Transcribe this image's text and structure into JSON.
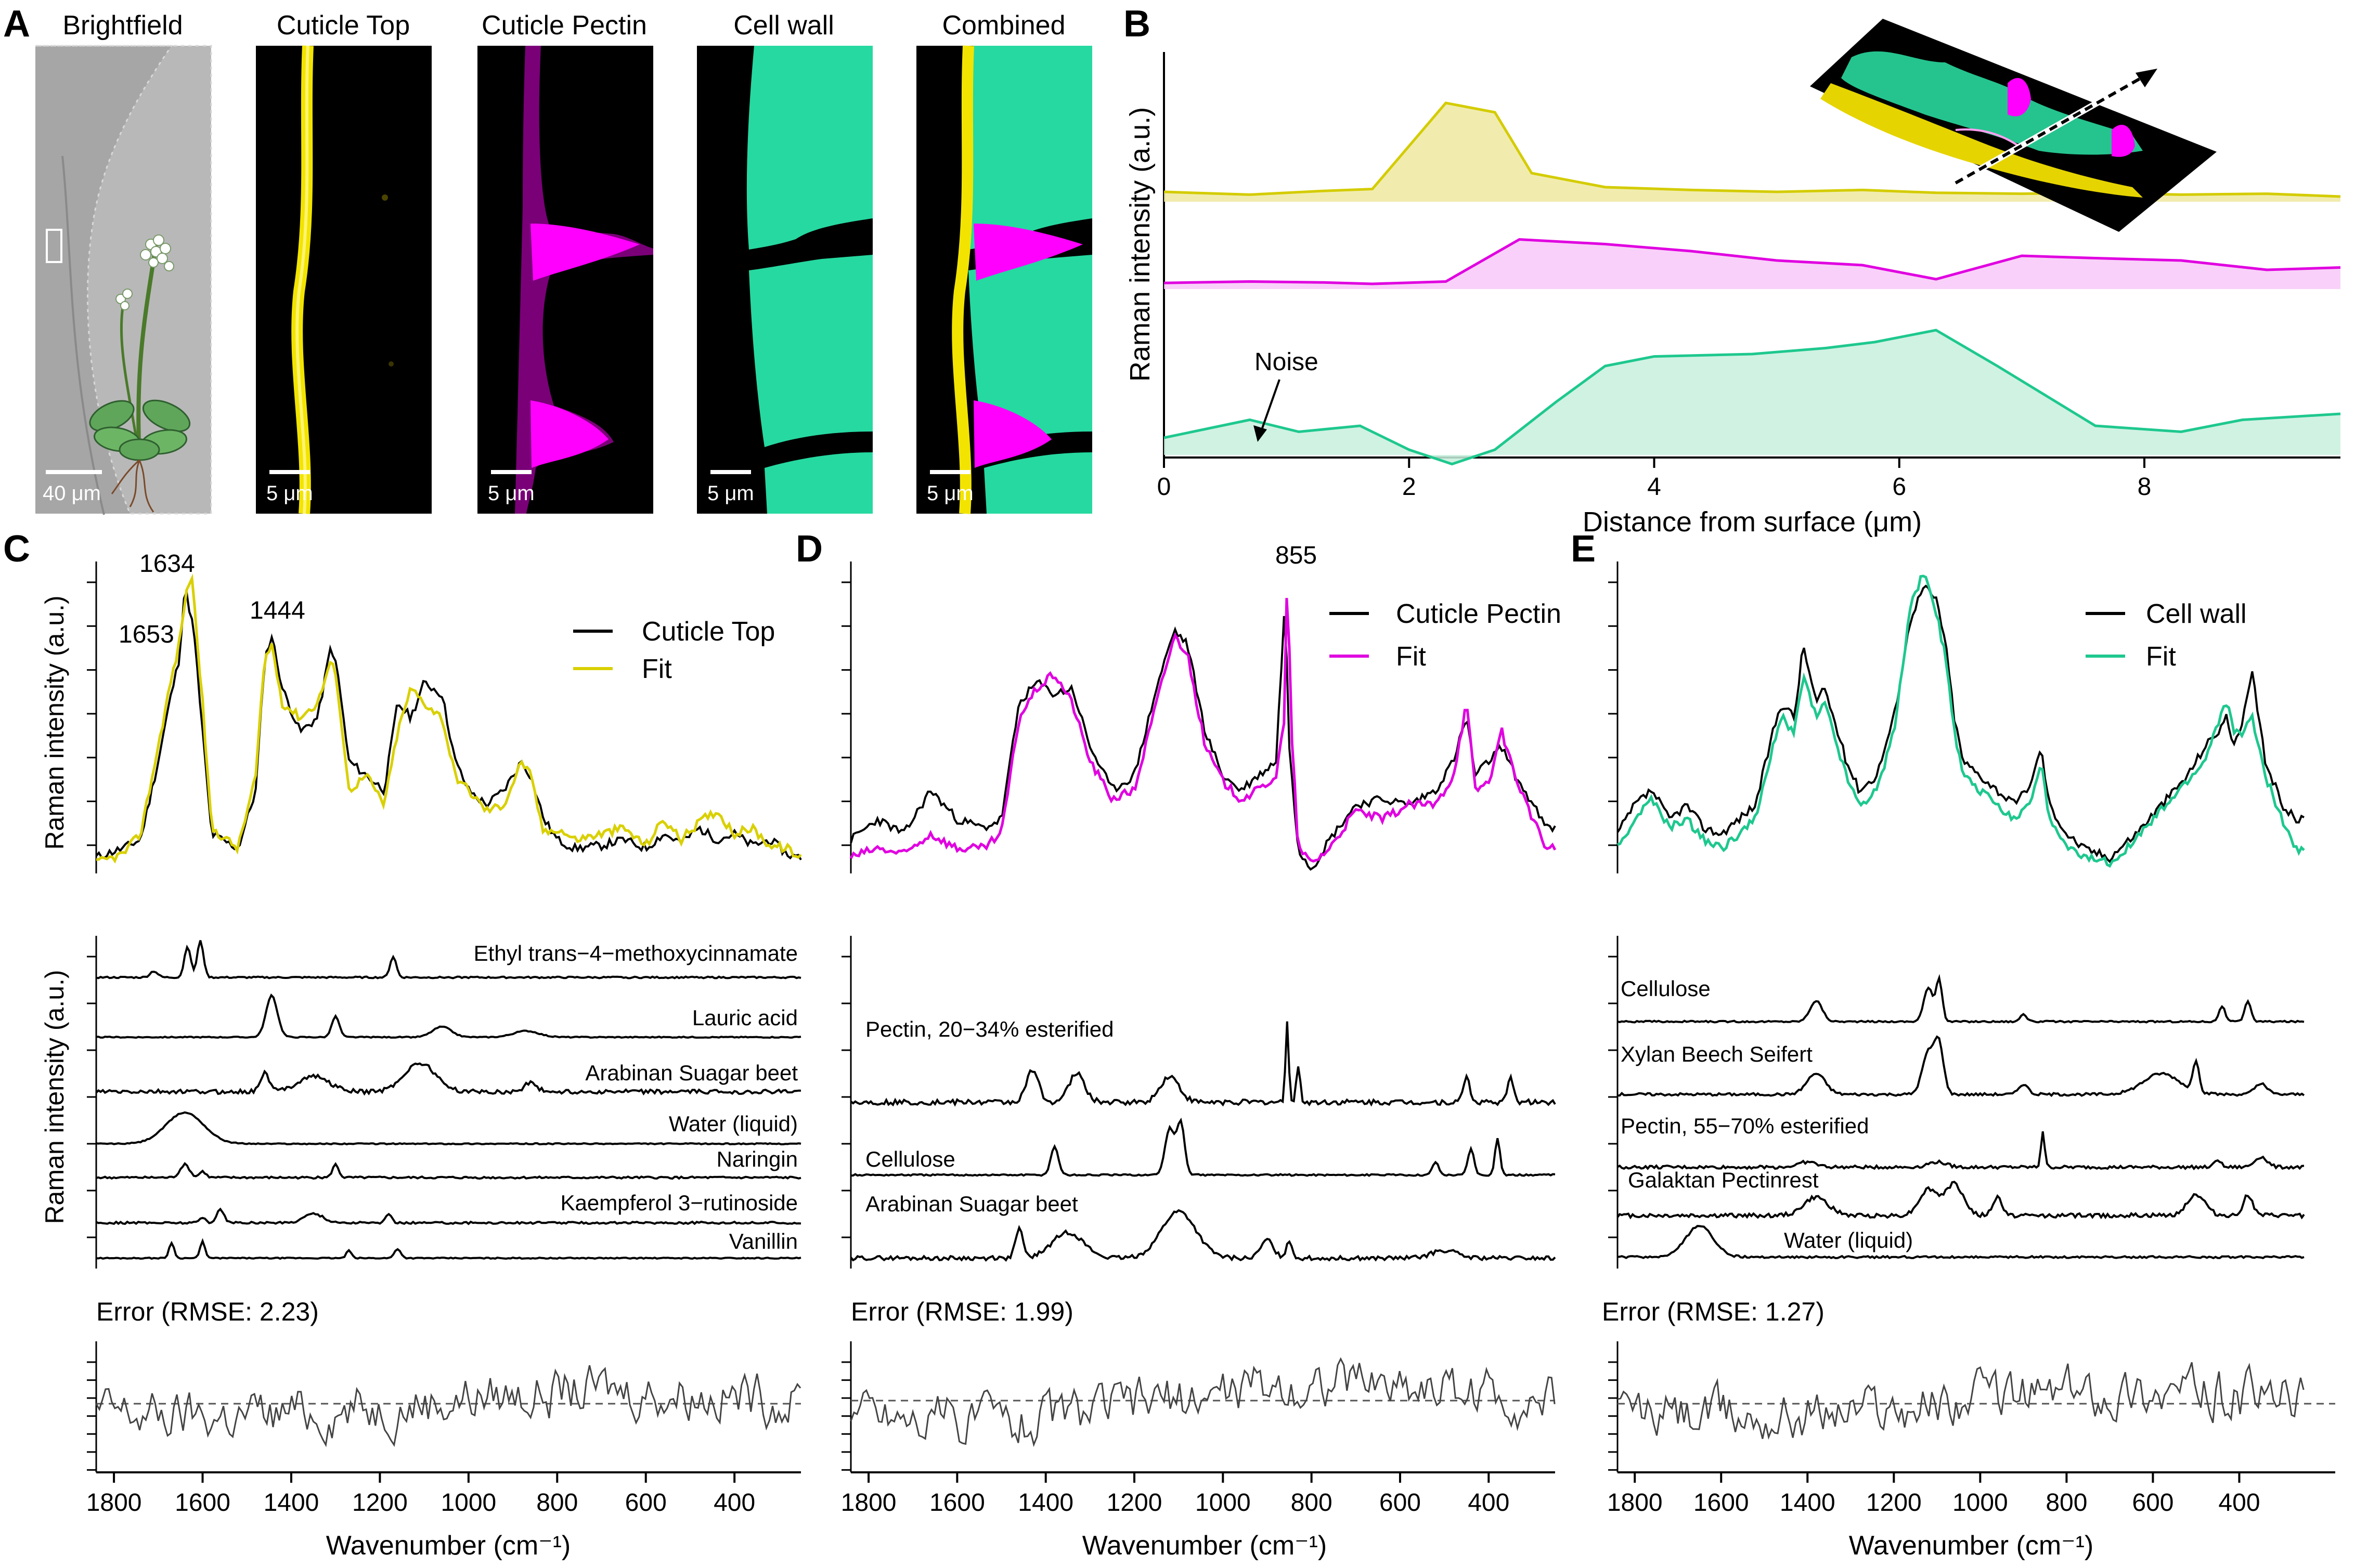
{
  "panel_letters": {
    "A": "A",
    "B": "B",
    "C": "C",
    "D": "D",
    "E": "E"
  },
  "panel_a": {
    "titles": [
      "Brightfield",
      "Cuticle Top",
      "Cuticle Pectin",
      "Cell wall",
      "Combined"
    ],
    "scalebars": [
      "40 μm",
      "5 μm",
      "5 μm",
      "5 μm",
      "5 μm"
    ],
    "colors": {
      "cuticle_top": "#ffee00",
      "cuticle_pectin": "#ff00ff",
      "cell_wall": "#2ee6a8",
      "brightfield": "#9a9a9a"
    }
  },
  "chart_data": [
    {
      "id": "B",
      "type": "area",
      "title": "",
      "xlabel": "Distance from surface (μm)",
      "ylabel": "Raman intensity (a.u.)",
      "xlim": [
        0,
        9.6
      ],
      "xticks": [
        "0",
        "2",
        "4",
        "6",
        "8"
      ],
      "annotation": "Noise",
      "series": [
        {
          "name": "Cuticle Top",
          "color": "#d4cc00",
          "fill": "#efe9a0",
          "x": [
            0,
            0.7,
            1.3,
            1.7,
            2.3,
            2.7,
            3.0,
            3.6,
            4.3,
            5.0,
            5.7,
            6.3,
            7.0,
            7.6,
            8.3,
            9.0,
            9.6
          ],
          "y": [
            0.05,
            0.02,
            0.06,
            0.08,
            1.0,
            0.9,
            0.25,
            0.1,
            0.07,
            0.05,
            0.07,
            0.04,
            0.03,
            0.04,
            0.02,
            0.03,
            0.0
          ]
        },
        {
          "name": "Cuticle Pectin",
          "color": "#e000e0",
          "fill": "#f8c8f8",
          "x": [
            0,
            0.7,
            1.3,
            1.7,
            2.3,
            2.9,
            3.6,
            4.3,
            5.0,
            5.7,
            6.3,
            7.0,
            7.6,
            8.3,
            9.0,
            9.6
          ],
          "y": [
            0.02,
            0.05,
            0.03,
            0.0,
            0.05,
            0.95,
            0.85,
            0.7,
            0.5,
            0.4,
            0.1,
            0.6,
            0.55,
            0.5,
            0.3,
            0.35
          ]
        },
        {
          "name": "Cell wall",
          "color": "#1ec88e",
          "fill": "#c8f0de",
          "x": [
            0,
            0.7,
            1.1,
            1.6,
            2.0,
            2.35,
            2.7,
            3.2,
            3.6,
            4.0,
            4.8,
            5.4,
            5.8,
            6.3,
            6.8,
            7.6,
            8.3,
            8.8,
            9.6
          ],
          "y": [
            0.1,
            0.25,
            0.15,
            0.2,
            0.0,
            -0.12,
            0.0,
            0.4,
            0.7,
            0.78,
            0.8,
            0.85,
            0.9,
            1.0,
            0.7,
            0.2,
            0.15,
            0.25,
            0.3
          ]
        }
      ]
    },
    {
      "id": "C",
      "type": "line",
      "title": "",
      "xlabel": "Wavenumber (cm⁻¹)",
      "ylabel": "Raman intensity (a.u.)",
      "xlim": [
        1840,
        250
      ],
      "xticks": [
        "1800",
        "1600",
        "1400",
        "1200",
        "1000",
        "800",
        "600",
        "400"
      ],
      "legend": [
        "Cuticle Top",
        "Fit"
      ],
      "legend_colors": [
        "#000000",
        "#d9d000"
      ],
      "peak_labels": [
        "1634",
        "1653",
        "1444"
      ],
      "peaks_x": [
        1634,
        1653,
        1444
      ],
      "series": [
        {
          "name": "Cuticle Top",
          "x": [
            1840,
            1780,
            1740,
            1700,
            1675,
            1653,
            1640,
            1620,
            1580,
            1520,
            1480,
            1460,
            1444,
            1420,
            1380,
            1340,
            1310,
            1295,
            1270,
            1230,
            1190,
            1160,
            1130,
            1100,
            1060,
            1030,
            1000,
            960,
            920,
            880,
            860,
            830,
            800,
            760,
            700,
            650,
            600,
            560,
            520,
            480,
            440,
            400,
            360,
            320,
            280,
            260
          ],
          "y": [
            0.02,
            0.05,
            0.08,
            0.35,
            0.55,
            0.7,
            0.95,
            0.8,
            0.1,
            0.05,
            0.25,
            0.7,
            0.78,
            0.6,
            0.45,
            0.5,
            0.75,
            0.65,
            0.35,
            0.3,
            0.25,
            0.55,
            0.5,
            0.62,
            0.58,
            0.35,
            0.25,
            0.2,
            0.25,
            0.35,
            0.3,
            0.15,
            0.08,
            0.05,
            0.06,
            0.08,
            0.05,
            0.1,
            0.07,
            0.12,
            0.08,
            0.1,
            0.06,
            0.08,
            0.03,
            0.02
          ]
        },
        {
          "name": "Fit",
          "x": [
            1840,
            1780,
            1740,
            1700,
            1675,
            1653,
            1640,
            1625,
            1600,
            1580,
            1520,
            1480,
            1460,
            1444,
            1420,
            1380,
            1340,
            1310,
            1295,
            1270,
            1230,
            1190,
            1160,
            1130,
            1100,
            1060,
            1030,
            1000,
            960,
            920,
            880,
            860,
            830,
            800,
            760,
            700,
            650,
            600,
            560,
            520,
            480,
            440,
            400,
            360,
            320,
            280,
            260
          ],
          "y": [
            0.0,
            0.03,
            0.1,
            0.4,
            0.6,
            0.75,
            0.9,
            1.0,
            0.55,
            0.12,
            0.05,
            0.3,
            0.7,
            0.75,
            0.55,
            0.5,
            0.55,
            0.7,
            0.6,
            0.25,
            0.3,
            0.2,
            0.45,
            0.6,
            0.55,
            0.5,
            0.3,
            0.25,
            0.18,
            0.2,
            0.35,
            0.3,
            0.1,
            0.12,
            0.08,
            0.1,
            0.12,
            0.06,
            0.15,
            0.08,
            0.14,
            0.18,
            0.1,
            0.12,
            0.06,
            0.05,
            0.02
          ]
        }
      ],
      "components": [
        "Ethyl trans−4−methoxycinnamate",
        "Lauric acid",
        "Arabinan Suagar beet",
        "Water (liquid)",
        "Naringin",
        "Kaempferol 3−rutinoside",
        "Vanillin"
      ],
      "error_label": "Error (RMSE: 2.23)"
    },
    {
      "id": "D",
      "type": "line",
      "title": "",
      "xlabel": "Wavenumber (cm⁻¹)",
      "ylabel": "",
      "xlim": [
        1840,
        250
      ],
      "xticks": [
        "1800",
        "1600",
        "1400",
        "1200",
        "1000",
        "800",
        "600",
        "400"
      ],
      "legend": [
        "Cuticle Pectin",
        "Fit"
      ],
      "legend_colors": [
        "#000000",
        "#e000e0"
      ],
      "peak_labels": [
        "855"
      ],
      "peaks_x": [
        855
      ],
      "series": [
        {
          "name": "Cuticle Pectin",
          "x": [
            1840,
            1780,
            1720,
            1660,
            1600,
            1540,
            1500,
            1460,
            1420,
            1380,
            1340,
            1300,
            1250,
            1200,
            1150,
            1110,
            1080,
            1040,
            1000,
            960,
            920,
            880,
            860,
            850,
            830,
            800,
            760,
            700,
            640,
            580,
            520,
            480,
            450,
            430,
            400,
            370,
            340,
            300,
            270
          ],
          "y": [
            0.08,
            0.15,
            0.1,
            0.25,
            0.15,
            0.12,
            0.15,
            0.55,
            0.62,
            0.58,
            0.6,
            0.4,
            0.25,
            0.3,
            0.6,
            0.8,
            0.75,
            0.45,
            0.3,
            0.25,
            0.3,
            0.35,
            0.9,
            0.4,
            0.05,
            -0.02,
            0.08,
            0.2,
            0.22,
            0.2,
            0.25,
            0.35,
            0.5,
            0.3,
            0.35,
            0.4,
            0.3,
            0.2,
            0.12
          ]
        },
        {
          "name": "Fit",
          "x": [
            1840,
            1780,
            1720,
            1660,
            1600,
            1540,
            1500,
            1460,
            1420,
            1380,
            1340,
            1300,
            1250,
            1200,
            1150,
            1110,
            1080,
            1040,
            1000,
            960,
            920,
            880,
            860,
            855,
            845,
            830,
            800,
            760,
            700,
            640,
            580,
            520,
            480,
            450,
            430,
            400,
            370,
            340,
            300,
            270
          ],
          "y": [
            0.02,
            0.05,
            0.03,
            0.1,
            0.05,
            0.05,
            0.1,
            0.5,
            0.6,
            0.65,
            0.55,
            0.35,
            0.22,
            0.25,
            0.55,
            0.78,
            0.72,
            0.4,
            0.28,
            0.22,
            0.25,
            0.3,
            0.5,
            1.0,
            0.45,
            0.05,
            0.0,
            0.05,
            0.18,
            0.15,
            0.2,
            0.2,
            0.3,
            0.55,
            0.25,
            0.28,
            0.45,
            0.3,
            0.15,
            0.05
          ]
        }
      ],
      "components": [
        "Pectin, 20−34% esterified",
        "Cellulose",
        "Arabinan Suagar beet"
      ],
      "error_label": "Error (RMSE: 1.99)"
    },
    {
      "id": "E",
      "type": "line",
      "title": "",
      "xlabel": "Wavenumber (cm⁻¹)",
      "ylabel": "",
      "xlim": [
        1840,
        250
      ],
      "xticks": [
        "1800",
        "1600",
        "1400",
        "1200",
        "1000",
        "800",
        "600",
        "400"
      ],
      "legend": [
        "Cell wall",
        "Fit"
      ],
      "legend_colors": [
        "#000000",
        "#1ec88e"
      ],
      "series": [
        {
          "name": "Cell wall",
          "x": [
            1840,
            1800,
            1760,
            1720,
            1680,
            1640,
            1600,
            1560,
            1520,
            1480,
            1460,
            1430,
            1410,
            1380,
            1360,
            1340,
            1310,
            1280,
            1240,
            1200,
            1160,
            1130,
            1100,
            1080,
            1060,
            1040,
            1000,
            960,
            920,
            880,
            860,
            840,
            800,
            760,
            700,
            640,
            580,
            520,
            480,
            450,
            430,
            410,
            390,
            370,
            340,
            300,
            270
          ],
          "y": [
            0.1,
            0.2,
            0.25,
            0.15,
            0.2,
            0.12,
            0.1,
            0.15,
            0.2,
            0.45,
            0.55,
            0.5,
            0.75,
            0.55,
            0.6,
            0.5,
            0.35,
            0.25,
            0.3,
            0.5,
            0.85,
            0.95,
            0.9,
            0.75,
            0.5,
            0.35,
            0.3,
            0.25,
            0.2,
            0.28,
            0.4,
            0.2,
            0.1,
            0.05,
            0.02,
            0.1,
            0.2,
            0.3,
            0.4,
            0.45,
            0.5,
            0.4,
            0.5,
            0.65,
            0.35,
            0.2,
            0.15
          ]
        },
        {
          "name": "Fit",
          "x": [
            1840,
            1800,
            1760,
            1720,
            1680,
            1640,
            1600,
            1560,
            1520,
            1480,
            1460,
            1430,
            1410,
            1380,
            1360,
            1340,
            1310,
            1280,
            1240,
            1200,
            1160,
            1130,
            1100,
            1080,
            1060,
            1040,
            1000,
            960,
            920,
            880,
            860,
            840,
            800,
            760,
            700,
            640,
            580,
            520,
            480,
            450,
            430,
            410,
            390,
            370,
            340,
            300,
            270
          ],
          "y": [
            0.05,
            0.15,
            0.22,
            0.12,
            0.15,
            0.08,
            0.05,
            0.1,
            0.15,
            0.4,
            0.5,
            0.45,
            0.65,
            0.5,
            0.55,
            0.45,
            0.3,
            0.2,
            0.25,
            0.45,
            0.9,
            1.0,
            0.85,
            0.7,
            0.45,
            0.3,
            0.25,
            0.2,
            0.15,
            0.22,
            0.35,
            0.15,
            0.05,
            0.02,
            0.0,
            0.08,
            0.18,
            0.28,
            0.35,
            0.48,
            0.55,
            0.45,
            0.45,
            0.5,
            0.3,
            0.15,
            0.05
          ]
        }
      ],
      "components": [
        "Cellulose",
        "Xylan Beech Seifert",
        "Pectin, 55−70% esterified",
        "Galaktan Pectinrest",
        "Water (liquid)"
      ],
      "error_label": "Error (RMSE: 1.27)"
    }
  ]
}
